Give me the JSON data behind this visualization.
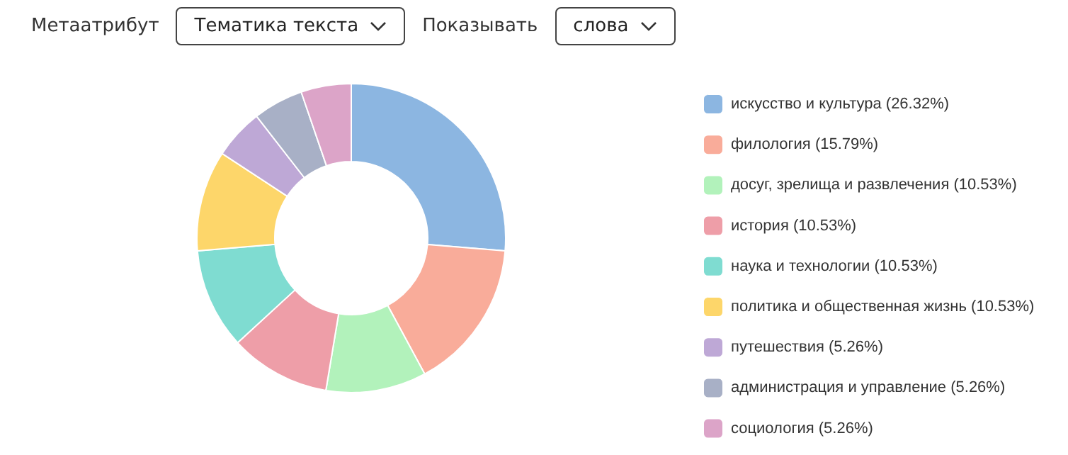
{
  "chart_data": {
    "type": "donut",
    "annotations": [
      "Метаатрибут",
      "Тематика текста",
      "Показывать",
      "слова"
    ],
    "categories": [
      "искусство и культура (26.32%)",
      "филология (15.79%)",
      "досуг, зрелища и развлечения (10.53%)",
      "история (10.53%)",
      "наука и технологии (10.53%)",
      "политика и общественная жизнь (10.53%)",
      "путешествия (5.26%)",
      "администрация и управление (5.26%)",
      "социология (5.26%)"
    ],
    "values": [
      26.32,
      15.79,
      10.53,
      10.53,
      10.53,
      10.53,
      5.26,
      5.26,
      5.26
    ],
    "colors": [
      "#8cb6e1",
      "#f9ac9a",
      "#b2f2bb",
      "#ee9ea8",
      "#7fdcd1",
      "#fdd66a",
      "#bea8d6",
      "#a8b0c6",
      "#dca4c8"
    ],
    "legend": "right"
  }
}
